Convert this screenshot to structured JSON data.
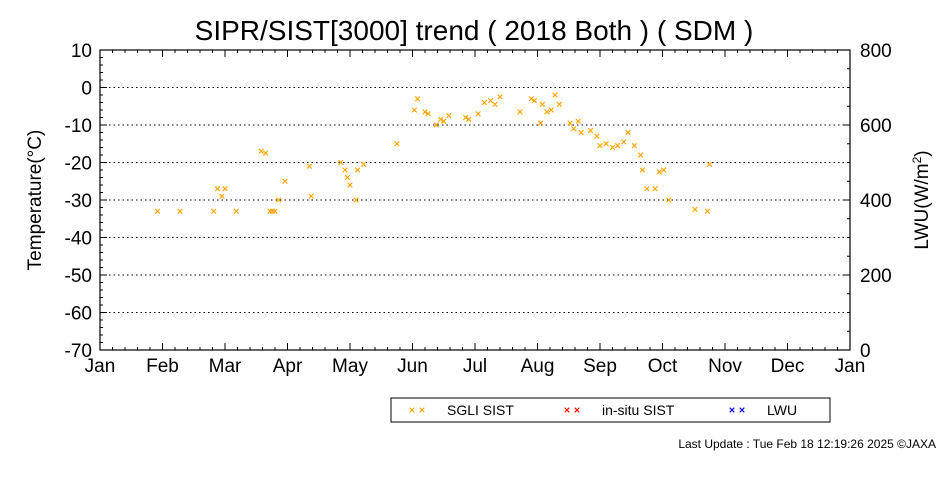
{
  "chart_data": {
    "type": "scatter",
    "title": "SIPR/SIST[3000] trend ( 2018 Both ) ( SDM )",
    "ylabel": "Temperature(°C)",
    "y2label_main": "LWU(W/m",
    "y2label_sup": "2",
    "y2label_end": ")",
    "ylim": [
      -70,
      10
    ],
    "y2lim": [
      0,
      800
    ],
    "yticks": [
      "10",
      "0",
      "-10",
      "-20",
      "-30",
      "-40",
      "-50",
      "-60",
      "-70"
    ],
    "y2ticks": [
      "800",
      "600",
      "400",
      "200",
      "0"
    ],
    "xlim": [
      0,
      12
    ],
    "xticks": [
      "Jan",
      "Feb",
      "Mar",
      "Apr",
      "May",
      "Jun",
      "Jul",
      "Aug",
      "Sep",
      "Oct",
      "Nov",
      "Dec",
      "Jan"
    ],
    "grid": "horizontal dotted",
    "legend_placement": "bottom",
    "series": [
      {
        "name": "SGLI SIST",
        "color": "#ffa500",
        "marker": "x",
        "points": [
          [
            0.92,
            -33.0
          ],
          [
            1.28,
            -33.0
          ],
          [
            1.82,
            -33.0
          ],
          [
            1.88,
            -27.0
          ],
          [
            1.95,
            -29.0
          ],
          [
            2.0,
            -27.0
          ],
          [
            2.18,
            -33.0
          ],
          [
            2.58,
            -17.0
          ],
          [
            2.65,
            -17.5
          ],
          [
            2.72,
            -33.0
          ],
          [
            2.76,
            -33.0
          ],
          [
            2.8,
            -33.0
          ],
          [
            2.86,
            -30.0
          ],
          [
            2.96,
            -25.0
          ],
          [
            3.35,
            -21.0
          ],
          [
            3.38,
            -29.0
          ],
          [
            3.85,
            -20.0
          ],
          [
            3.92,
            -22.0
          ],
          [
            3.96,
            -24.0
          ],
          [
            4.0,
            -26.0
          ],
          [
            4.1,
            -30.0
          ],
          [
            4.12,
            -22.0
          ],
          [
            4.22,
            -20.5
          ],
          [
            4.75,
            -15.0
          ],
          [
            5.03,
            -6.0
          ],
          [
            5.08,
            -3.0
          ],
          [
            5.2,
            -6.5
          ],
          [
            5.25,
            -7.0
          ],
          [
            5.38,
            -10.0
          ],
          [
            5.45,
            -8.5
          ],
          [
            5.5,
            -9.0
          ],
          [
            5.58,
            -7.5
          ],
          [
            5.85,
            -8.0
          ],
          [
            5.9,
            -8.5
          ],
          [
            6.05,
            -7.0
          ],
          [
            6.15,
            -4.0
          ],
          [
            6.25,
            -3.5
          ],
          [
            6.32,
            -4.5
          ],
          [
            6.4,
            -2.5
          ],
          [
            6.72,
            -6.5
          ],
          [
            6.9,
            -3.0
          ],
          [
            6.95,
            -3.5
          ],
          [
            7.05,
            -9.5
          ],
          [
            7.08,
            -4.5
          ],
          [
            7.15,
            -6.5
          ],
          [
            7.22,
            -6.0
          ],
          [
            7.28,
            -2.0
          ],
          [
            7.35,
            -4.5
          ],
          [
            7.52,
            -9.5
          ],
          [
            7.58,
            -11.0
          ],
          [
            7.65,
            -9.0
          ],
          [
            7.7,
            -12.0
          ],
          [
            7.85,
            -11.5
          ],
          [
            7.95,
            -13.0
          ],
          [
            8.0,
            -15.5
          ],
          [
            8.1,
            -15.0
          ],
          [
            8.2,
            -16.0
          ],
          [
            8.28,
            -15.5
          ],
          [
            8.38,
            -14.5
          ],
          [
            8.45,
            -12.0
          ],
          [
            8.55,
            -15.5
          ],
          [
            8.65,
            -18.0
          ],
          [
            8.68,
            -22.0
          ],
          [
            8.75,
            -27.0
          ],
          [
            8.88,
            -27.0
          ],
          [
            8.95,
            -22.5
          ],
          [
            9.02,
            -22.0
          ],
          [
            9.1,
            -30.0
          ],
          [
            9.52,
            -32.5
          ],
          [
            9.72,
            -33.0
          ],
          [
            9.75,
            -20.5
          ]
        ]
      },
      {
        "name": "in-situ SIST",
        "color": "#ff0000",
        "marker": "x",
        "points": []
      },
      {
        "name": "LWU",
        "color": "#0000ff",
        "marker": "x",
        "points": []
      }
    ],
    "footer": "Last Update : Tue Feb 18 12:19:26 2025  ©JAXA"
  }
}
